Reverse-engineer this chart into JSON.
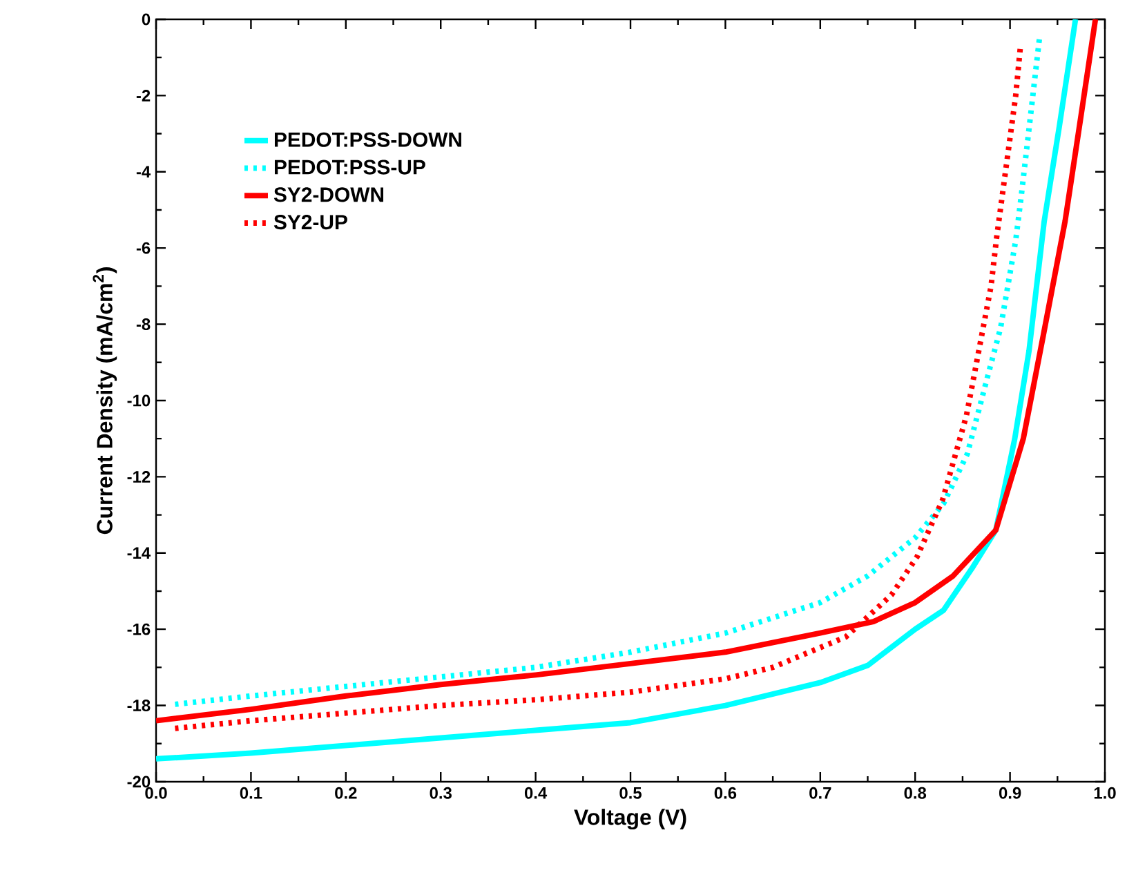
{
  "chart_data": {
    "type": "line",
    "xlabel": "Voltage (V)",
    "ylabel": "Current Density (mA/cm$^{2}$)",
    "xlim": [
      0,
      1
    ],
    "ylim": [
      -20,
      0
    ],
    "xticks": [
      {
        "value": 0,
        "label": "0.0"
      },
      0.1,
      0.2,
      0.3,
      0.4,
      0.5,
      0.6,
      0.7,
      0.8,
      0.9,
      {
        "value": 1,
        "label": "1.0"
      }
    ],
    "yticks": [
      -20,
      -18,
      -16,
      -14,
      -12,
      -10,
      -8,
      -6,
      -4,
      -2,
      0
    ],
    "grid": false,
    "legend": "top left",
    "marker": "none",
    "series": [
      {
        "name": "PEDOT:PSS-DOWN",
        "color": "#00ffff",
        "line_style": "solid",
        "x": [
          0,
          0.1,
          0.2,
          0.3,
          0.4,
          0.5,
          0.6,
          0.7,
          0.75,
          0.8,
          0.83,
          0.86,
          0.885,
          0.905,
          0.92,
          0.936,
          0.952,
          0.969
        ],
        "values": [
          -19.4,
          -19.25,
          -19.05,
          -18.85,
          -18.65,
          -18.45,
          -18.0,
          -17.4,
          -16.95,
          -16.0,
          -15.5,
          -14.4,
          -13.4,
          -11.0,
          -8.7,
          -5.3,
          -2.8,
          0
        ]
      },
      {
        "name": "PEDOT:PSS-UP",
        "color": "#00ffff",
        "line_style": "dotted",
        "x": [
          0.02,
          0.1,
          0.2,
          0.3,
          0.4,
          0.5,
          0.6,
          0.7,
          0.75,
          0.8,
          0.83,
          0.855,
          0.875,
          0.89,
          0.906,
          0.912,
          0.931
        ],
        "values": [
          -17.97,
          -17.75,
          -17.5,
          -17.25,
          -17.0,
          -16.6,
          -16.1,
          -15.3,
          -14.6,
          -13.6,
          -12.7,
          -11.4,
          -9.5,
          -8.1,
          -5.8,
          -4.6,
          -0.5
        ]
      },
      {
        "name": "SY2-DOWN",
        "color": "#ff0000",
        "line_style": "solid",
        "x": [
          0,
          0.1,
          0.2,
          0.3,
          0.4,
          0.5,
          0.6,
          0.7,
          0.756,
          0.8,
          0.84,
          0.885,
          0.914,
          0.935,
          0.958,
          0.975,
          0.99
        ],
        "values": [
          -18.4,
          -18.1,
          -17.75,
          -17.45,
          -17.2,
          -16.9,
          -16.6,
          -16.1,
          -15.8,
          -15.3,
          -14.6,
          -13.4,
          -11.0,
          -8.3,
          -5.3,
          -2.5,
          0
        ]
      },
      {
        "name": "SY2-UP",
        "color": "#ff0000",
        "line_style": "dotted",
        "x": [
          0.02,
          0.1,
          0.2,
          0.3,
          0.4,
          0.5,
          0.6,
          0.65,
          0.727,
          0.775,
          0.802,
          0.829,
          0.854,
          0.864,
          0.88,
          0.886,
          0.906,
          0.911
        ],
        "values": [
          -18.6,
          -18.4,
          -18.2,
          -18.0,
          -17.85,
          -17.65,
          -17.3,
          -17.0,
          -16.2,
          -15.1,
          -14.1,
          -12.6,
          -10.4,
          -9.1,
          -7.0,
          -5.7,
          -2.0,
          -0.7
        ]
      }
    ]
  }
}
